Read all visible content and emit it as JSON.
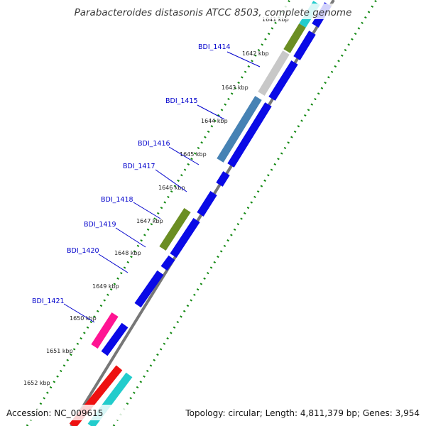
{
  "title": "Parabacteroides distasonis ATCC 8503, complete genome",
  "footer": {
    "accession": "Accession: NC_009615",
    "topology": "Topology: circular; Length: 4,811,379 bp; Genes: 3,954"
  },
  "ticks": [
    "1641 kbp",
    "1642 kbp",
    "1643 kbp",
    "1644 kbp",
    "1645 kbp",
    "1646 kbp",
    "1647 kbp",
    "1648 kbp",
    "1649 kbp",
    "1650 kbp",
    "1651 kbp",
    "1652 kbp"
  ],
  "loci": [
    "BDI_1414",
    "BDI_1415",
    "BDI_1416",
    "BDI_1417",
    "BDI_1418",
    "BDI_1419",
    "BDI_1420",
    "BDI_1421"
  ],
  "colors": {
    "cds": "#0a0ae6",
    "olive": "#6b8e23",
    "gray": "#c8c8c8",
    "steelblue": "#4682b4",
    "magenta": "#ff1493",
    "red": "#ee1111",
    "cyan": "#22cccc",
    "backbone": "#777777",
    "gc_dots": "#118811",
    "locus_text": "#0000cc"
  }
}
